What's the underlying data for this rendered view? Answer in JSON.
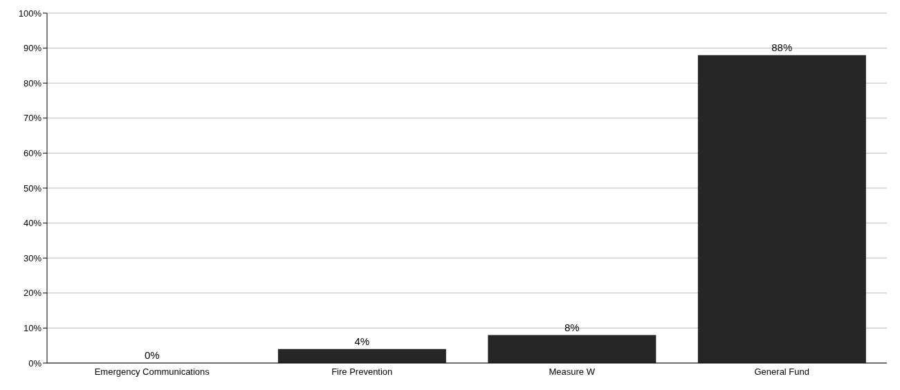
{
  "chart_data": {
    "type": "bar",
    "categories": [
      "Emergency Communications",
      "Fire Prevention",
      "Measure W",
      "General Fund"
    ],
    "values": [
      0,
      4,
      8,
      88
    ],
    "color": "#262626",
    "value_labels": [
      "0%",
      "4%",
      "8%",
      "88%"
    ],
    "ylim": [
      0,
      100
    ],
    "yticks": [
      {
        "value": 0,
        "label": "0%"
      },
      {
        "value": 10,
        "label": "10%"
      },
      {
        "value": 20,
        "label": "20%"
      },
      {
        "value": 30,
        "label": "30%"
      },
      {
        "value": 40,
        "label": "40%"
      },
      {
        "value": 50,
        "label": "50%"
      },
      {
        "value": 60,
        "label": "60%"
      },
      {
        "value": 70,
        "label": "70%"
      },
      {
        "value": 80,
        "label": "80%"
      },
      {
        "value": 90,
        "label": "90%"
      },
      {
        "value": 100,
        "label": "100%"
      }
    ],
    "grid": "y"
  }
}
